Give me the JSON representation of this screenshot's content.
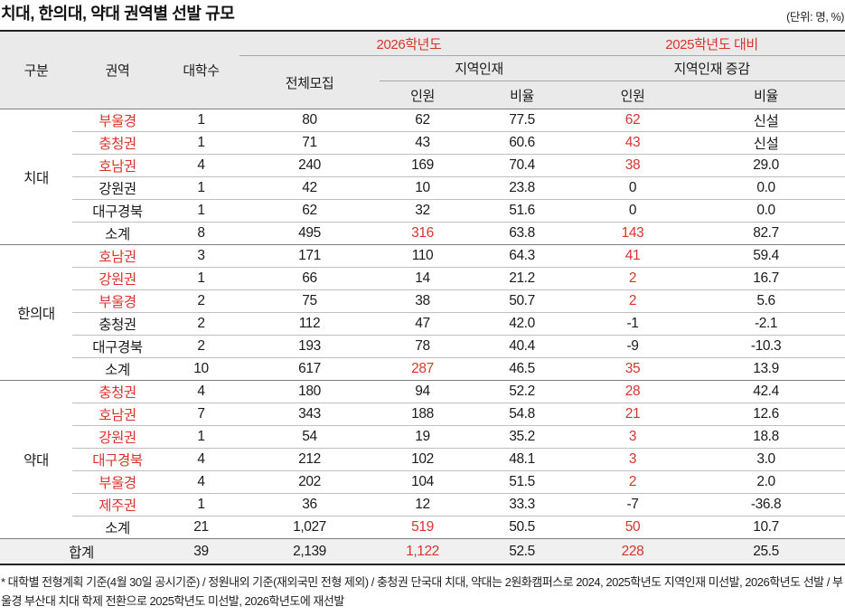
{
  "page": {
    "title": "치대, 한의대, 약대 권역별 선발 규모",
    "unit_note": "(단위: 명, %)",
    "footnote": "* 대학별 전형계획 기준(4월 30일 공시기준) / 정원내외 기준(재외국민 전형 제외) / 충청권 단국대 치대, 약대는 2원화캠퍼스로 2024, 2025학년도 지역인재 미선발, 2026학년도 선발 / 부울경 부산대 치대 학제 전환으로 2025학년도 미선발, 2026학년도에 재선발"
  },
  "colors": {
    "accent_red": "#d9342b",
    "header_bg": "#eaeaea",
    "total_row_bg": "#f0f0f0",
    "border_dark": "#222222",
    "border_section": "#7e7e7e",
    "border_row": "#bfbfbf"
  },
  "chart_data": {
    "type": "table",
    "title": "치대, 한의대, 약대 권역별 선발 규모",
    "unit": "(단위: 명, %)",
    "header": {
      "gubun": "구분",
      "region": "권역",
      "univs": "대학수",
      "year2026": "2026학년도",
      "total_recruit": "전체모집",
      "regional_talent": "지역인재",
      "num": "인원",
      "ratio": "비율",
      "year2025": "2025학년도 대비",
      "regional_change": "지역인재 증감",
      "num2": "인원",
      "ratio2": "비율"
    },
    "groups": [
      {
        "label": "치대",
        "rows": [
          {
            "region": "부울경",
            "red_region": true,
            "univs": "1",
            "total": "80",
            "num": "62",
            "red_num": false,
            "ratio": "77.5",
            "chg": "62",
            "red_chg": true,
            "chg_ratio": "신설"
          },
          {
            "region": "충청권",
            "red_region": true,
            "univs": "1",
            "total": "71",
            "num": "43",
            "red_num": false,
            "ratio": "60.6",
            "chg": "43",
            "red_chg": true,
            "chg_ratio": "신설"
          },
          {
            "region": "호남권",
            "red_region": true,
            "univs": "4",
            "total": "240",
            "num": "169",
            "red_num": false,
            "ratio": "70.4",
            "chg": "38",
            "red_chg": true,
            "chg_ratio": "29.0"
          },
          {
            "region": "강원권",
            "red_region": false,
            "univs": "1",
            "total": "42",
            "num": "10",
            "red_num": false,
            "ratio": "23.8",
            "chg": "0",
            "red_chg": false,
            "chg_ratio": "0.0"
          },
          {
            "region": "대구경북",
            "red_region": false,
            "univs": "1",
            "total": "62",
            "num": "32",
            "red_num": false,
            "ratio": "51.6",
            "chg": "0",
            "red_chg": false,
            "chg_ratio": "0.0"
          },
          {
            "region": "소계",
            "red_region": false,
            "univs": "8",
            "total": "495",
            "num": "316",
            "red_num": true,
            "ratio": "63.8",
            "chg": "143",
            "red_chg": true,
            "chg_ratio": "82.7"
          }
        ]
      },
      {
        "label": "한의대",
        "rows": [
          {
            "region": "호남권",
            "red_region": true,
            "univs": "3",
            "total": "171",
            "num": "110",
            "red_num": false,
            "ratio": "64.3",
            "chg": "41",
            "red_chg": true,
            "chg_ratio": "59.4"
          },
          {
            "region": "강원권",
            "red_region": true,
            "univs": "1",
            "total": "66",
            "num": "14",
            "red_num": false,
            "ratio": "21.2",
            "chg": "2",
            "red_chg": true,
            "chg_ratio": "16.7"
          },
          {
            "region": "부울경",
            "red_region": true,
            "univs": "2",
            "total": "75",
            "num": "38",
            "red_num": false,
            "ratio": "50.7",
            "chg": "2",
            "red_chg": true,
            "chg_ratio": "5.6"
          },
          {
            "region": "충청권",
            "red_region": false,
            "univs": "2",
            "total": "112",
            "num": "47",
            "red_num": false,
            "ratio": "42.0",
            "chg": "-1",
            "red_chg": false,
            "chg_ratio": "-2.1"
          },
          {
            "region": "대구경북",
            "red_region": false,
            "univs": "2",
            "total": "193",
            "num": "78",
            "red_num": false,
            "ratio": "40.4",
            "chg": "-9",
            "red_chg": false,
            "chg_ratio": "-10.3"
          },
          {
            "region": "소계",
            "red_region": false,
            "univs": "10",
            "total": "617",
            "num": "287",
            "red_num": true,
            "ratio": "46.5",
            "chg": "35",
            "red_chg": true,
            "chg_ratio": "13.9"
          }
        ]
      },
      {
        "label": "약대",
        "rows": [
          {
            "region": "충청권",
            "red_region": true,
            "univs": "4",
            "total": "180",
            "num": "94",
            "red_num": false,
            "ratio": "52.2",
            "chg": "28",
            "red_chg": true,
            "chg_ratio": "42.4"
          },
          {
            "region": "호남권",
            "red_region": true,
            "univs": "7",
            "total": "343",
            "num": "188",
            "red_num": false,
            "ratio": "54.8",
            "chg": "21",
            "red_chg": true,
            "chg_ratio": "12.6"
          },
          {
            "region": "강원권",
            "red_region": true,
            "univs": "1",
            "total": "54",
            "num": "19",
            "red_num": false,
            "ratio": "35.2",
            "chg": "3",
            "red_chg": true,
            "chg_ratio": "18.8"
          },
          {
            "region": "대구경북",
            "red_region": true,
            "univs": "4",
            "total": "212",
            "num": "102",
            "red_num": false,
            "ratio": "48.1",
            "chg": "3",
            "red_chg": true,
            "chg_ratio": "3.0"
          },
          {
            "region": "부울경",
            "red_region": true,
            "univs": "4",
            "total": "202",
            "num": "104",
            "red_num": false,
            "ratio": "51.5",
            "chg": "2",
            "red_chg": true,
            "chg_ratio": "2.0"
          },
          {
            "region": "제주권",
            "red_region": true,
            "univs": "1",
            "total": "36",
            "num": "12",
            "red_num": false,
            "ratio": "33.3",
            "chg": "-7",
            "red_chg": false,
            "chg_ratio": "-36.8"
          },
          {
            "region": "소계",
            "red_region": false,
            "univs": "21",
            "total": "1,027",
            "num": "519",
            "red_num": true,
            "ratio": "50.5",
            "chg": "50",
            "red_chg": true,
            "chg_ratio": "10.7"
          }
        ]
      }
    ],
    "total": {
      "label": "합계",
      "univs": "39",
      "total": "2,139",
      "num": "1,122",
      "red_num": true,
      "ratio": "52.5",
      "chg": "228",
      "red_chg": true,
      "chg_ratio": "25.5"
    }
  }
}
